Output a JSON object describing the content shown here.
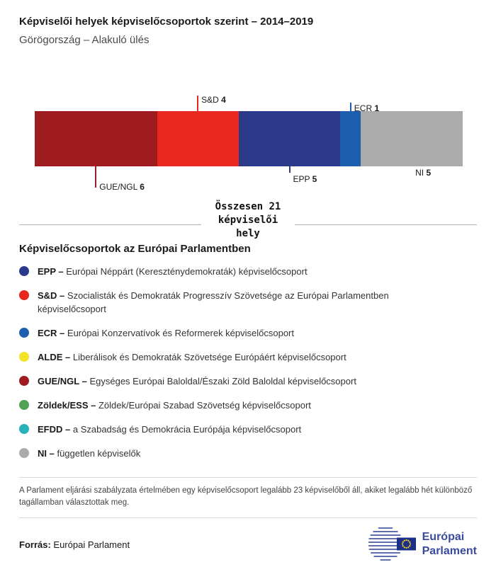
{
  "header": {
    "title": "Képviselői helyek képviselőcsoportok szerint – 2014–2019",
    "subtitle": "Görögország – Alakuló ülés"
  },
  "chart_data": {
    "type": "bar",
    "subtype": "horizontal-stacked-seat-bar",
    "title": "Képviselői helyek képviselőcsoportok szerint – 2014–2019",
    "total": 21,
    "total_label": "Összesen 21 képviselői hely",
    "series": [
      {
        "name": "GUE/NGL",
        "value": 6,
        "color": "#9e1c20",
        "side": "below",
        "line_len": 30,
        "label_dy": 22
      },
      {
        "name": "S&D",
        "value": 4,
        "color": "#e8271f",
        "side": "above",
        "line_len": 22,
        "label_dy": -23
      },
      {
        "name": "EPP",
        "value": 5,
        "color": "#2c3a8b",
        "side": "below",
        "line_len": 9,
        "label_dy": 11
      },
      {
        "name": "ECR",
        "value": 1,
        "color": "#1d5fae",
        "side": "above",
        "line_len": 12,
        "label_dy": -11
      },
      {
        "name": "NI",
        "value": 5,
        "color": "#ababab",
        "side": "below",
        "line_len": 0,
        "label_dy": 2
      }
    ]
  },
  "legend": {
    "heading": "Képviselőcsoportok az Európai Parlamentben",
    "items": [
      {
        "abbr": "EPP –",
        "text": "Európai Néppárt (Kereszténydemokraták) képviselőcsoport",
        "color": "#2c3a8b"
      },
      {
        "abbr": "S&D –",
        "text": "Szocialisták és Demokraták Progresszív Szövetsége az Európai Parlamentben képviselőcsoport",
        "color": "#e8271f"
      },
      {
        "abbr": "ECR –",
        "text": "Európai Konzervatívok és Reformerek képviselőcsoport",
        "color": "#1d5fae"
      },
      {
        "abbr": "ALDE –",
        "text": "Liberálisok és Demokraták Szövetsége Európáért képviselőcsoport",
        "color": "#f2e327"
      },
      {
        "abbr": "GUE/NGL –",
        "text": "Egységes Európai Baloldal/Északi Zöld Baloldal képviselőcsoport",
        "color": "#9e1c20"
      },
      {
        "abbr": "Zöldek/ESS –",
        "text": "Zöldek/Európai Szabad Szövetség képviselőcsoport",
        "color": "#52a254"
      },
      {
        "abbr": "EFDD –",
        "text": "a Szabadság és Demokrácia Európája képviselőcsoport",
        "color": "#28b2ba"
      },
      {
        "abbr": "NI –",
        "text": "független képviselők",
        "color": "#ababab"
      }
    ]
  },
  "footer": {
    "note": "A Parlament eljárási szabályzata értelmében egy képviselőcsoport legalább 23 képviselőből áll, akiket legalább hét különböző tagállamban választottak meg.",
    "source_label": "Forrás:",
    "source_text": " Európai Parlament",
    "logo_line1": "Európai",
    "logo_line2": "Parlament"
  }
}
